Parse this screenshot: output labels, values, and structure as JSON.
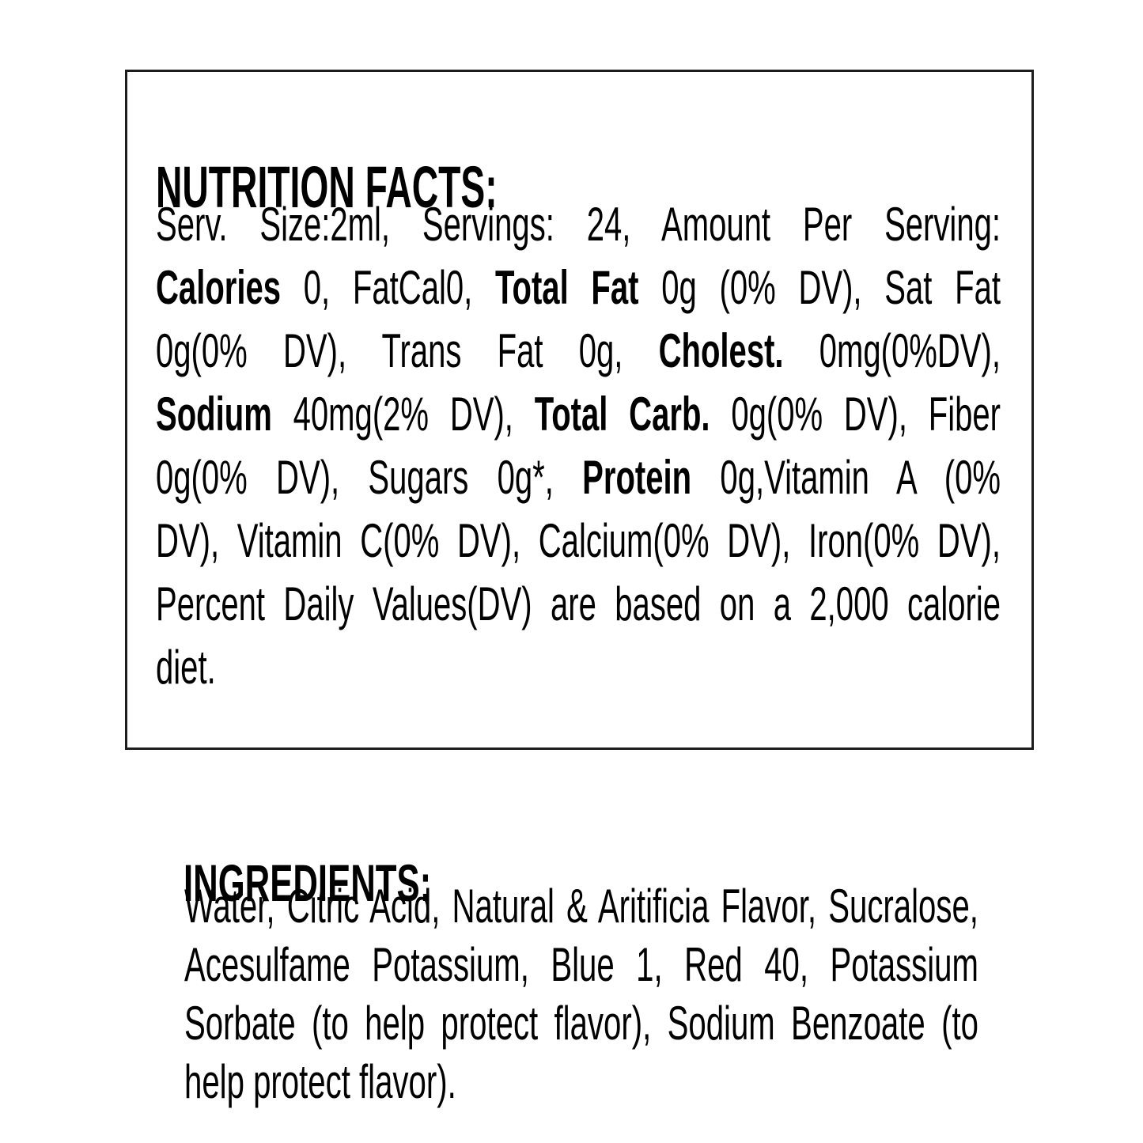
{
  "page": {
    "background_color": "#ffffff",
    "text_color": "#000000",
    "box_border_color": "#1d1d1d"
  },
  "nutrition": {
    "title": "NUTRITION FACTS:",
    "lines": [
      [
        {
          "t": "Serv. Size:2ml, Servings: 24, Amount Per Serving:",
          "b": false
        }
      ],
      [
        {
          "t": "Calories",
          "b": true
        },
        {
          "t": " 0, FatCal0, ",
          "b": false
        },
        {
          "t": "Total Fat",
          "b": true
        },
        {
          "t": " 0g (0% DV), Sat Fat",
          "b": false
        }
      ],
      [
        {
          "t": "0g(0% DV), Trans Fat 0g, ",
          "b": false
        },
        {
          "t": "Cholest.",
          "b": true
        },
        {
          "t": " 0mg(0%DV),",
          "b": false
        }
      ],
      [
        {
          "t": "Sodium",
          "b": true
        },
        {
          "t": " 40mg(2% DV), ",
          "b": false
        },
        {
          "t": "Total Carb.",
          "b": true
        },
        {
          "t": " 0g(0% DV), Fiber",
          "b": false
        }
      ],
      [
        {
          "t": "0g(0% DV), Sugars 0g*, ",
          "b": false
        },
        {
          "t": "Protein",
          "b": true
        },
        {
          "t": " 0g,Vitamin A (0%",
          "b": false
        }
      ],
      [
        {
          "t": "DV), Vitamin C(0% DV), Calcium(0% DV), Iron(0% DV),",
          "b": false
        }
      ],
      [
        {
          "t": "Percent Daily Values(DV) are based on a 2,000 calorie",
          "b": false
        }
      ],
      [
        {
          "t": "diet.",
          "b": false
        }
      ]
    ]
  },
  "ingredients": {
    "title": "INGREDIENTS:",
    "lines": [
      [
        {
          "t": "Water, Citric Acid, Natural & Aritificia Flavor, Sucralose,",
          "b": false
        }
      ],
      [
        {
          "t": "Acesulfame Potassium, Blue 1, Red 40, Potassium",
          "b": false
        }
      ],
      [
        {
          "t": "Sorbate (to help protect flavor), Sodium Benzoate (to",
          "b": false
        }
      ],
      [
        {
          "t": "help protect flavor).",
          "b": false
        }
      ]
    ]
  }
}
